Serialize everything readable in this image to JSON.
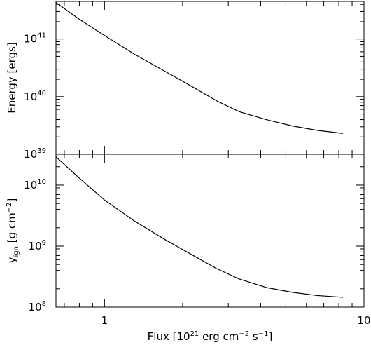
{
  "chart_data": [
    {
      "type": "line",
      "panel": "top",
      "xscale": "log",
      "yscale": "log",
      "xlim": [
        0.65,
        10
      ],
      "ylim": [
        1e+39,
        4.5e+41
      ],
      "ylabel": "Energy [ergs]",
      "xlabel": "",
      "ytick_labels": [
        {
          "value": 1e+39,
          "base": "10",
          "exp": "39"
        },
        {
          "value": 1e+40,
          "base": "10",
          "exp": "40"
        },
        {
          "value": 1e+41,
          "base": "10",
          "exp": "41"
        }
      ],
      "x": [
        0.65,
        0.8,
        1.0,
        1.3,
        1.7,
        2.2,
        2.7,
        3.3,
        4.2,
        5.3,
        6.6,
        8.3
      ],
      "y": [
        4.3e+41,
        2.2e+41,
        1.15e+41,
        5.5e+40,
        2.8e+40,
        1.45e+40,
        8.5e+39,
        5.5e+39,
        4e+39,
        3.1e+39,
        2.6e+39,
        2.3e+39
      ]
    },
    {
      "type": "line",
      "panel": "bottom",
      "xscale": "log",
      "yscale": "log",
      "xlim": [
        0.65,
        10
      ],
      "ylim": [
        100000000.0,
        32000000000.0
      ],
      "ylabel": "y",
      "ylabel_sub": "ign",
      "ylabel_rest": " [g cm",
      "ylabel_exp": "−2",
      "ylabel_close": "]",
      "xlabel_prefix": "Flux [10",
      "xlabel_exp1": "21",
      "xlabel_mid": " erg cm",
      "xlabel_exp2": "−2",
      "xlabel_mid2": " s",
      "xlabel_exp3": "−1",
      "xlabel_close": "]",
      "ytick_labels": [
        {
          "value": 100000000.0,
          "base": "10",
          "exp": "8"
        },
        {
          "value": 1000000000.0,
          "base": "10",
          "exp": "9"
        },
        {
          "value": 10000000000.0,
          "base": "10",
          "exp": "10"
        }
      ],
      "xtick_labels": [
        {
          "value": 1,
          "text": "1"
        },
        {
          "value": 10,
          "text": "10"
        }
      ],
      "x": [
        0.65,
        0.8,
        1.0,
        1.3,
        1.7,
        2.2,
        2.7,
        3.3,
        4.2,
        5.3,
        6.6,
        8.3
      ],
      "y": [
        29000000000.0,
        13000000000.0,
        5700000000.0,
        2600000000.0,
        1300000000.0,
        700000000.0,
        430000000.0,
        290000000.0,
        210000000.0,
        175000000.0,
        155000000.0,
        145000000.0
      ]
    }
  ]
}
